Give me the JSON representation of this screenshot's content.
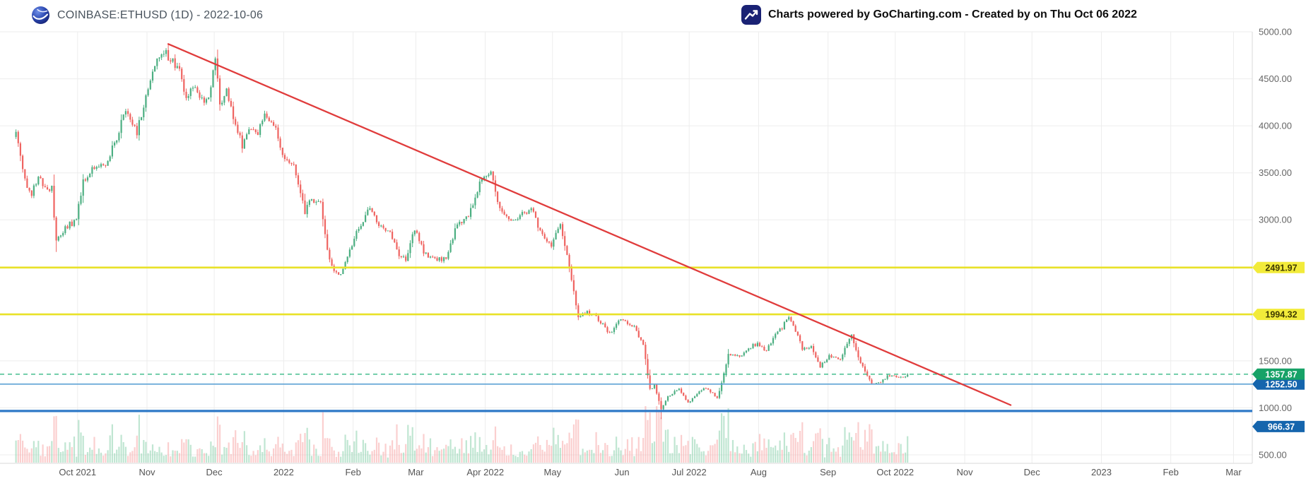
{
  "header": {
    "symbol_title": "COINBASE:ETHUSD (1D) - 2022-10-06",
    "powered_prefix": "Charts powered by ",
    "powered_brand": "GoCharting.com",
    "powered_suffix": " - Created by  on Thu Oct 06 2022"
  },
  "chart_data": {
    "type": "candlestick",
    "symbol": "COINBASE:ETHUSD",
    "timeframe": "1D",
    "as_of_date": "2022-10-06",
    "last_price": 1357.87,
    "y_axis": {
      "min": 500,
      "max": 5000,
      "tick_interval": 500,
      "labeled_ticks": [
        {
          "value": 5000,
          "label": "5000.00"
        },
        {
          "value": 4500,
          "label": "4500.00"
        },
        {
          "value": 4000,
          "label": "4000.00"
        },
        {
          "value": 3500,
          "label": "3500.00"
        },
        {
          "value": 3000,
          "label": "3000.00"
        },
        {
          "value": 1500,
          "label": "1500.00"
        },
        {
          "value": 1000,
          "label": "1000.00"
        },
        {
          "value": 500,
          "label": "500.00"
        }
      ]
    },
    "x_axis": {
      "month_labels": [
        {
          "label": "Oct 2021",
          "day": 28
        },
        {
          "label": "Nov",
          "day": 59
        },
        {
          "label": "Dec",
          "day": 89
        },
        {
          "label": "2022",
          "day": 120
        },
        {
          "label": "Feb",
          "day": 151
        },
        {
          "label": "Mar",
          "day": 179
        },
        {
          "label": "Apr 2022",
          "day": 210
        },
        {
          "label": "May",
          "day": 240
        },
        {
          "label": "Jun",
          "day": 271
        },
        {
          "label": "Jul 2022",
          "day": 301
        },
        {
          "label": "Aug",
          "day": 332
        },
        {
          "label": "Sep",
          "day": 363
        },
        {
          "label": "Oct 2022",
          "day": 393
        },
        {
          "label": "Nov",
          "day": 424
        },
        {
          "label": "Dec",
          "day": 454
        },
        {
          "label": "2023",
          "day": 485
        },
        {
          "label": "Feb",
          "day": 516
        },
        {
          "label": "Mar",
          "day": 544
        }
      ]
    },
    "price_anchors": [
      [
        0,
        3940
      ],
      [
        4,
        3430
      ],
      [
        7,
        3290
      ],
      [
        10,
        3450
      ],
      [
        13,
        3330
      ],
      [
        16,
        3330
      ],
      [
        18,
        2760
      ],
      [
        23,
        2930
      ],
      [
        27,
        3000
      ],
      [
        30,
        3420
      ],
      [
        35,
        3560
      ],
      [
        40,
        3600
      ],
      [
        45,
        3850
      ],
      [
        48,
        4170
      ],
      [
        51,
        4080
      ],
      [
        54,
        3920
      ],
      [
        58,
        4290
      ],
      [
        61,
        4600
      ],
      [
        66,
        4810
      ],
      [
        68,
        4730
      ],
      [
        73,
        4570
      ],
      [
        76,
        4250
      ],
      [
        79,
        4420
      ],
      [
        82,
        4270
      ],
      [
        86,
        4300
      ],
      [
        89,
        4700
      ],
      [
        91,
        4220
      ],
      [
        94,
        4350
      ],
      [
        97,
        4120
      ],
      [
        101,
        3780
      ],
      [
        104,
        3960
      ],
      [
        108,
        3930
      ],
      [
        111,
        4100
      ],
      [
        115,
        4040
      ],
      [
        119,
        3680
      ],
      [
        124,
        3550
      ],
      [
        129,
        3080
      ],
      [
        132,
        3240
      ],
      [
        136,
        3160
      ],
      [
        140,
        2560
      ],
      [
        143,
        2440
      ],
      [
        146,
        2470
      ],
      [
        151,
        2790
      ],
      [
        155,
        3000
      ],
      [
        158,
        3150
      ],
      [
        162,
        2920
      ],
      [
        167,
        2890
      ],
      [
        171,
        2620
      ],
      [
        174,
        2580
      ],
      [
        178,
        2920
      ],
      [
        182,
        2640
      ],
      [
        186,
        2580
      ],
      [
        192,
        2590
      ],
      [
        197,
        2950
      ],
      [
        202,
        3030
      ],
      [
        207,
        3400
      ],
      [
        212,
        3520
      ],
      [
        215,
        3170
      ],
      [
        220,
        2980
      ],
      [
        225,
        3060
      ],
      [
        230,
        3100
      ],
      [
        235,
        2850
      ],
      [
        239,
        2730
      ],
      [
        243,
        2940
      ],
      [
        247,
        2520
      ],
      [
        250,
        2080
      ],
      [
        251,
        1960
      ],
      [
        255,
        2020
      ],
      [
        259,
        1960
      ],
      [
        265,
        1790
      ],
      [
        270,
        1940
      ],
      [
        276,
        1860
      ],
      [
        280,
        1660
      ],
      [
        283,
        1200
      ],
      [
        285,
        1230
      ],
      [
        288,
        995
      ],
      [
        291,
        1125
      ],
      [
        296,
        1200
      ],
      [
        300,
        1060
      ],
      [
        304,
        1150
      ],
      [
        308,
        1215
      ],
      [
        313,
        1110
      ],
      [
        316,
        1355
      ],
      [
        318,
        1570
      ],
      [
        323,
        1550
      ],
      [
        327,
        1640
      ],
      [
        331,
        1680
      ],
      [
        335,
        1610
      ],
      [
        339,
        1780
      ],
      [
        342,
        1850
      ],
      [
        345,
        1980
      ],
      [
        348,
        1830
      ],
      [
        351,
        1620
      ],
      [
        355,
        1660
      ],
      [
        359,
        1440
      ],
      [
        363,
        1555
      ],
      [
        368,
        1510
      ],
      [
        370,
        1630
      ],
      [
        373,
        1780
      ],
      [
        377,
        1470
      ],
      [
        380,
        1335
      ],
      [
        383,
        1250
      ],
      [
        387,
        1295
      ],
      [
        389,
        1330
      ],
      [
        392,
        1330
      ],
      [
        395,
        1310
      ],
      [
        398,
        1357.87
      ]
    ],
    "ath": {
      "day": 68,
      "high": 4870
    },
    "cycle_low": {
      "day": 288,
      "low": 880
    },
    "horizontal_lines": [
      {
        "price": 2491.97,
        "label": "2491.97",
        "style": "solid",
        "width": 2.6,
        "line_color": "#e9e227",
        "label_bg": "#f2eb3a",
        "label_fg": "#3f3a00",
        "label_dy": 0
      },
      {
        "price": 1994.32,
        "label": "1994.32",
        "style": "solid",
        "width": 2.6,
        "line_color": "#e9e227",
        "label_bg": "#f2eb3a",
        "label_fg": "#3f3a00",
        "label_dy": 0
      },
      {
        "price": 1357.87,
        "label": "1357.87",
        "style": "dashed",
        "width": 1.4,
        "line_color": "#35b884",
        "label_bg": "#17a267",
        "label_fg": "#ffffff",
        "label_dy": 0
      },
      {
        "price": 1252.5,
        "label": "1252.50",
        "style": "solid",
        "width": 1.6,
        "line_color": "#5da2d5",
        "label_bg": "#1565ad",
        "label_fg": "#ffffff",
        "label_dy": 0
      },
      {
        "price": 966.37,
        "label": "966.37",
        "style": "solid",
        "width": 3.2,
        "line_color": "#2e79c7",
        "label_bg": "#1565ad",
        "label_fg": "#ffffff",
        "label_dy": 22
      }
    ],
    "trendline": {
      "from_day": 68,
      "from_price": 4870,
      "to_day": 444,
      "to_price": 1030,
      "color": "#e03c3c",
      "width": 2.3
    },
    "colors": {
      "up": "#4caf82",
      "down": "#ef6461",
      "vol_up": "rgba(130,205,165,0.5)",
      "vol_down": "rgba(247,160,160,0.5)",
      "grid": "#ededed",
      "axis_border": "#d9d9d9",
      "axis_text": "#666666",
      "month_text": "#555555"
    },
    "seed": 42
  }
}
